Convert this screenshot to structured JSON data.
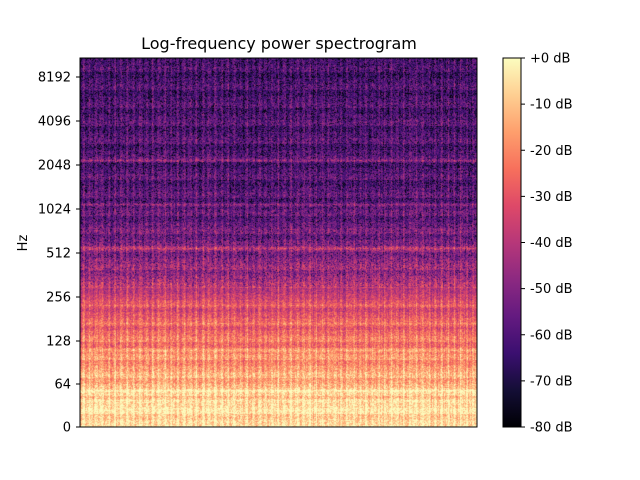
{
  "chart_data": {
    "type": "heatmap",
    "title": "Log-frequency power spectrogram",
    "xlabel": "",
    "ylabel": "Hz",
    "y_scale": "log2",
    "y_ticks": [
      0,
      64,
      128,
      256,
      512,
      1024,
      2048,
      4096,
      8192
    ],
    "y_tick_labels": [
      "0",
      "64",
      "128",
      "256",
      "512",
      "1024",
      "2048",
      "4096",
      "8192"
    ],
    "colormap": "magma",
    "colorbar": {
      "range_db": [
        -80,
        0
      ],
      "ticks": [
        0,
        -10,
        -20,
        -30,
        -40,
        -50,
        -60,
        -70,
        -80
      ],
      "tick_labels": [
        "+0 dB",
        "-10 dB",
        "-20 dB",
        "-30 dB",
        "-40 dB",
        "-50 dB",
        "-60 dB",
        "-70 dB",
        "-80 dB"
      ]
    },
    "harmonic_bands_hz": [
      40,
      55,
      110,
      165,
      220,
      550,
      1100,
      2200
    ],
    "level_profile_db": [
      {
        "hz": 32,
        "db": -8
      },
      {
        "hz": 64,
        "db": -14
      },
      {
        "hz": 128,
        "db": -26
      },
      {
        "hz": 256,
        "db": -38
      },
      {
        "hz": 512,
        "db": -48
      },
      {
        "hz": 1024,
        "db": -56
      },
      {
        "hz": 2048,
        "db": -58
      },
      {
        "hz": 4096,
        "db": -58
      },
      {
        "hz": 8192,
        "db": -60
      }
    ]
  }
}
